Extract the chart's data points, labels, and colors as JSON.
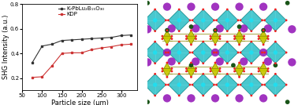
{
  "left_panel": {
    "xlabel": "Particle size (μm)",
    "ylabel": "SHG Intensity (a.u.)",
    "ylim": [
      0.1,
      0.8
    ],
    "xlim": [
      50,
      340
    ],
    "xticks": [
      50,
      100,
      150,
      200,
      250,
      300
    ],
    "yticks": [
      0.2,
      0.4,
      0.6,
      0.8
    ],
    "series1": {
      "label": "K₇PbLu₂B₁₅O₃₀",
      "x": [
        75,
        100,
        125,
        150,
        175,
        200,
        225,
        250,
        275,
        300,
        325
      ],
      "y": [
        0.325,
        0.46,
        0.475,
        0.505,
        0.51,
        0.515,
        0.52,
        0.525,
        0.53,
        0.545,
        0.55
      ],
      "color": "#333333",
      "marker": "s",
      "linestyle": "-"
    },
    "series2": {
      "label": "KDP",
      "x": [
        75,
        100,
        125,
        150,
        175,
        200,
        225,
        250,
        275,
        300,
        325
      ],
      "y": [
        0.205,
        0.21,
        0.3,
        0.4,
        0.405,
        0.405,
        0.43,
        0.445,
        0.455,
        0.47,
        0.475
      ],
      "color": "#cc3333",
      "marker": "s",
      "linestyle": "-"
    },
    "background": "#ffffff",
    "legend_fontsize": 5,
    "axis_fontsize": 6,
    "tick_fontsize": 5
  },
  "crystal_colors": {
    "octahedra_face": "#30c0c8",
    "octahedra_edge": "#108888",
    "octahedra_inner_line": "#60d8e0",
    "tetrahedra_face": "#c8c800",
    "tetrahedra_edge": "#888800",
    "purple_spheres": "#9922bb",
    "dark_green_spheres": "#1a5518",
    "red_spheres": "#ee2222",
    "cyan_spheres": "#22ddee",
    "background": "#ddeef8"
  }
}
